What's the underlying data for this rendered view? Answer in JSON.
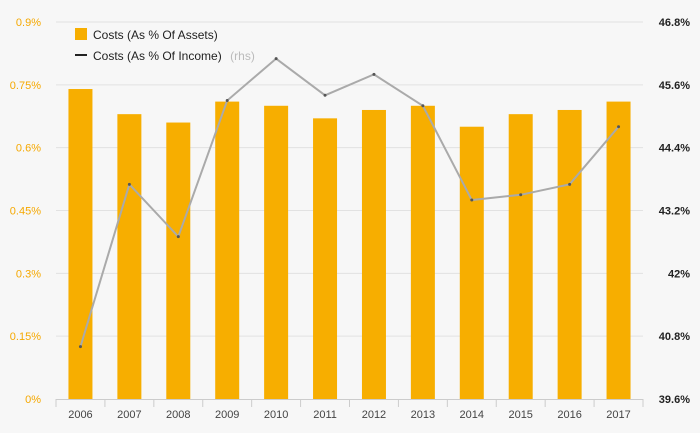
{
  "chart_data": {
    "type": "bar",
    "categories": [
      "2006",
      "2007",
      "2008",
      "2009",
      "2010",
      "2011",
      "2012",
      "2013",
      "2014",
      "2015",
      "2016",
      "2017"
    ],
    "series": [
      {
        "name": "Costs (As % Of Assets)",
        "type": "bar",
        "axis": "left",
        "color": "#f7ae00",
        "values": [
          0.74,
          0.68,
          0.66,
          0.71,
          0.7,
          0.67,
          0.69,
          0.7,
          0.65,
          0.68,
          0.69,
          0.71
        ]
      },
      {
        "name": "Costs (As % Of Income)",
        "type": "line",
        "axis": "right",
        "color": "#aaaaaa",
        "values": [
          40.6,
          43.7,
          42.7,
          45.3,
          46.1,
          45.4,
          45.8,
          45.2,
          43.4,
          43.5,
          43.7,
          44.8
        ]
      }
    ],
    "legend": [
      {
        "label": "Costs (As % Of Assets)",
        "suffix": ""
      },
      {
        "label": "Costs (As % Of Income)",
        "suffix": "(rhs)"
      }
    ],
    "y_left": {
      "ylim": [
        0,
        0.9
      ],
      "ticks": [
        0,
        0.15,
        0.3,
        0.45,
        0.6,
        0.75,
        0.9
      ],
      "tick_labels": [
        "0%",
        "0.15%",
        "0.3%",
        "0.45%",
        "0.6%",
        "0.75%",
        "0.9%"
      ],
      "color": "#f5a800"
    },
    "y_right": {
      "ylim": [
        39.6,
        46.8
      ],
      "ticks": [
        39.6,
        40.8,
        42,
        43.2,
        44.4,
        45.6,
        46.8
      ],
      "tick_labels": [
        "39.6%",
        "40.8%",
        "42%",
        "43.2%",
        "44.4%",
        "45.6%",
        "46.8%"
      ],
      "color": "#222222"
    },
    "grid": true,
    "legend_position": "top-left"
  }
}
